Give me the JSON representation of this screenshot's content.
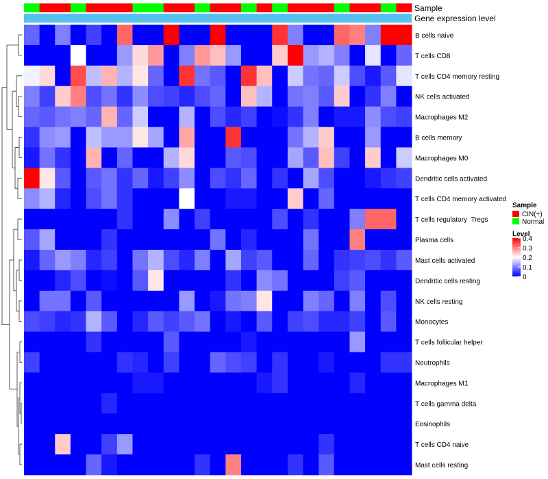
{
  "chart_data": {
    "type": "heatmap",
    "annotations": [
      {
        "name": "Sample",
        "key": "sample"
      },
      {
        "name": "Gene expression level",
        "key": "expr"
      }
    ],
    "column_samples": [
      "Normal",
      "CIN(+)",
      "CIN(+)",
      "Normal",
      "CIN(+)",
      "CIN(+)",
      "CIN(+)",
      "Normal",
      "Normal",
      "CIN(+)",
      "CIN(+)",
      "Normal",
      "CIN(+)",
      "CIN(+)",
      "Normal",
      "CIN(+)",
      "Normal",
      "CIN(+)",
      "CIN(+)",
      "CIN(+)",
      "Normal",
      "CIN(+)",
      "CIN(+)",
      "Normal",
      "CIN(+)"
    ],
    "rows": [
      "B cells naive",
      "T cells CD8",
      "T cells CD4 memory resting",
      "NK cells activated",
      "Macrophages M2",
      "B cells memory",
      "Macrophages M0",
      "Dendritic cells activated",
      "T cells CD4 memory activated",
      "T cells regulatory  Tregs",
      "Plasma cells",
      "Mast cells activated",
      "Dendritic cells resting",
      "NK cells resting",
      "Monocytes",
      "T cells follicular helper",
      "Neutrophils",
      "Macrophages M1",
      "T cells gamma delta",
      "Eosinophils",
      "T cells CD4 naive",
      "Mast cells resting"
    ],
    "values": [
      [
        0.08,
        0.0,
        0.1,
        0.0,
        0.05,
        0.0,
        0.32,
        0.0,
        0.0,
        0.4,
        0.0,
        0.0,
        0.4,
        0.0,
        0.0,
        0.0,
        0.36,
        0.1,
        0.0,
        0.0,
        0.32,
        0.3,
        0.1,
        0.4,
        0.4
      ],
      [
        0.0,
        0.0,
        0.0,
        0.2,
        0.0,
        0.0,
        0.12,
        0.23,
        0.28,
        0.0,
        0.1,
        0.28,
        0.25,
        0.12,
        0.0,
        0.0,
        0.24,
        0.4,
        0.12,
        0.14,
        0.1,
        0.0,
        0.18,
        0.0,
        0.08
      ],
      [
        0.19,
        0.23,
        0.0,
        0.34,
        0.15,
        0.26,
        0.14,
        0.22,
        0.08,
        0.0,
        0.36,
        0.09,
        0.07,
        0.0,
        0.36,
        0.25,
        0.0,
        0.16,
        0.09,
        0.08,
        0.16,
        0.06,
        0.02,
        0.07,
        0.18
      ],
      [
        0.1,
        0.05,
        0.24,
        0.3,
        0.06,
        0.09,
        0.04,
        0.11,
        0.06,
        0.05,
        0.03,
        0.06,
        0.08,
        0.0,
        0.25,
        0.14,
        0.0,
        0.09,
        0.1,
        0.07,
        0.24,
        0.0,
        0.04,
        0.1,
        0.0
      ],
      [
        0.08,
        0.07,
        0.09,
        0.1,
        0.08,
        0.26,
        0.08,
        0.16,
        0.0,
        0.0,
        0.14,
        0.0,
        0.06,
        0.03,
        0.05,
        0.0,
        0.01,
        0.04,
        0.1,
        0.0,
        0.02,
        0.02,
        0.11,
        0.06,
        0.05
      ],
      [
        0.04,
        0.11,
        0.12,
        0.0,
        0.15,
        0.12,
        0.12,
        0.22,
        0.13,
        0.0,
        0.27,
        0.0,
        0.0,
        0.36,
        0.0,
        0.0,
        0.0,
        0.09,
        0.14,
        0.24,
        0.0,
        0.0,
        0.12,
        0.0,
        0.0
      ],
      [
        0.02,
        0.09,
        0.04,
        0.0,
        0.26,
        0.0,
        0.08,
        0.0,
        0.0,
        0.14,
        0.23,
        0.0,
        0.0,
        0.07,
        0.06,
        0.0,
        0.0,
        0.13,
        0.07,
        0.25,
        0.05,
        0.0,
        0.24,
        0.0,
        0.16
      ],
      [
        0.4,
        0.22,
        0.07,
        0.0,
        0.07,
        0.09,
        0.04,
        0.08,
        0.02,
        0.05,
        0.11,
        0.0,
        0.06,
        0.04,
        0.08,
        0.0,
        0.04,
        0.0,
        0.13,
        0.06,
        0.0,
        0.0,
        0.02,
        0.04,
        0.05
      ],
      [
        0.11,
        0.14,
        0.03,
        0.0,
        0.06,
        0.09,
        0.04,
        0.0,
        0.0,
        0.0,
        0.2,
        0.0,
        0.0,
        0.02,
        0.02,
        0.0,
        0.0,
        0.24,
        0.0,
        0.08,
        0.0,
        0.0,
        0.0,
        0.0,
        0.0
      ],
      [
        0.0,
        0.0,
        0.0,
        0.0,
        0.0,
        0.0,
        0.04,
        0.0,
        0.0,
        0.11,
        0.0,
        0.05,
        0.0,
        0.0,
        0.0,
        0.0,
        0.06,
        0.0,
        0.04,
        0.0,
        0.0,
        0.1,
        0.32,
        0.32,
        0.0
      ],
      [
        0.07,
        0.13,
        0.0,
        0.0,
        0.0,
        0.04,
        0.0,
        0.0,
        0.0,
        0.0,
        0.0,
        0.0,
        0.09,
        0.0,
        0.03,
        0.0,
        0.0,
        0.0,
        0.09,
        0.0,
        0.0,
        0.3,
        0.0,
        0.0,
        0.0
      ],
      [
        0.02,
        0.08,
        0.12,
        0.1,
        0.03,
        0.05,
        0.0,
        0.09,
        0.14,
        0.06,
        0.03,
        0.1,
        0.0,
        0.13,
        0.05,
        0.07,
        0.0,
        0.0,
        0.08,
        0.0,
        0.04,
        0.05,
        0.06,
        0.04,
        0.07
      ],
      [
        0.0,
        0.0,
        0.03,
        0.06,
        0.0,
        0.01,
        0.0,
        0.07,
        0.22,
        0.0,
        0.0,
        0.0,
        0.0,
        0.04,
        0.0,
        0.11,
        0.09,
        0.0,
        0.0,
        0.0,
        0.05,
        0.07,
        0.0,
        0.0,
        0.0
      ],
      [
        0.0,
        0.09,
        0.09,
        0.0,
        0.07,
        0.0,
        0.0,
        0.0,
        0.0,
        0.0,
        0.12,
        0.0,
        0.02,
        0.09,
        0.1,
        0.22,
        0.0,
        0.0,
        0.1,
        0.08,
        0.0,
        0.1,
        0.0,
        0.06,
        0.0
      ],
      [
        0.06,
        0.05,
        0.03,
        0.04,
        0.14,
        0.07,
        0.0,
        0.03,
        0.07,
        0.05,
        0.07,
        0.09,
        0.0,
        0.02,
        0.0,
        0.07,
        0.0,
        0.05,
        0.06,
        0.03,
        0.03,
        0.05,
        0.0,
        0.07,
        0.0
      ],
      [
        0.0,
        0.0,
        0.0,
        0.0,
        0.04,
        0.0,
        0.0,
        0.0,
        0.0,
        0.07,
        0.0,
        0.0,
        0.0,
        0.0,
        0.02,
        0.0,
        0.0,
        0.0,
        0.0,
        0.0,
        0.0,
        0.12,
        0.0,
        0.0,
        0.0
      ],
      [
        0.05,
        0.0,
        0.0,
        0.0,
        0.0,
        0.0,
        0.04,
        0.03,
        0.0,
        0.05,
        0.0,
        0.0,
        0.08,
        0.06,
        0.05,
        0.0,
        0.04,
        0.0,
        0.0,
        0.02,
        0.0,
        0.0,
        0.0,
        0.04,
        0.04
      ],
      [
        0.0,
        0.0,
        0.0,
        0.0,
        0.0,
        0.0,
        0.0,
        0.02,
        0.02,
        0.0,
        0.0,
        0.0,
        0.0,
        0.0,
        0.0,
        0.02,
        0.04,
        0.0,
        0.0,
        0.0,
        0.0,
        0.03,
        0.0,
        0.0,
        0.0
      ],
      [
        0.0,
        0.0,
        0.0,
        0.0,
        0.0,
        0.03,
        0.0,
        0.0,
        0.0,
        0.0,
        0.0,
        0.0,
        0.0,
        0.0,
        0.0,
        0.0,
        0.0,
        0.0,
        0.0,
        0.0,
        0.0,
        0.0,
        0.0,
        0.0,
        0.0
      ],
      [
        0.0,
        0.0,
        0.0,
        0.0,
        0.0,
        0.0,
        0.0,
        0.0,
        0.0,
        0.0,
        0.0,
        0.0,
        0.0,
        0.0,
        0.0,
        0.0,
        0.0,
        0.0,
        0.0,
        0.0,
        0.0,
        0.0,
        0.0,
        0.0,
        0.0
      ],
      [
        0.0,
        0.0,
        0.24,
        0.0,
        0.0,
        0.05,
        0.12,
        0.0,
        0.0,
        0.0,
        0.0,
        0.0,
        0.0,
        0.0,
        0.0,
        0.0,
        0.0,
        0.0,
        0.0,
        0.04,
        0.0,
        0.0,
        0.0,
        0.0,
        0.0
      ],
      [
        0.0,
        0.0,
        0.0,
        0.0,
        0.08,
        0.02,
        0.0,
        0.0,
        0.0,
        0.0,
        0.0,
        0.04,
        0.0,
        0.3,
        0.0,
        0.0,
        0.0,
        0.04,
        0.0,
        0.07,
        0.0,
        0.0,
        0.0,
        0.0,
        0.0
      ]
    ],
    "color_scale": {
      "min": 0,
      "max": 0.4,
      "low": "#0000ff",
      "mid": "#ffffff",
      "high": "#ff0000"
    },
    "legend_sample": {
      "title": "Sample",
      "items": [
        {
          "label": "CIN(+)",
          "color": "#ff0000"
        },
        {
          "label": "Normal",
          "color": "#00ff00"
        }
      ]
    },
    "legend_level": {
      "title": "Level",
      "ticks": [
        0.4,
        0.3,
        0.2,
        0.1,
        0
      ]
    },
    "expression_bar_color": "#56c1ee",
    "dendrogram_side": "left"
  }
}
